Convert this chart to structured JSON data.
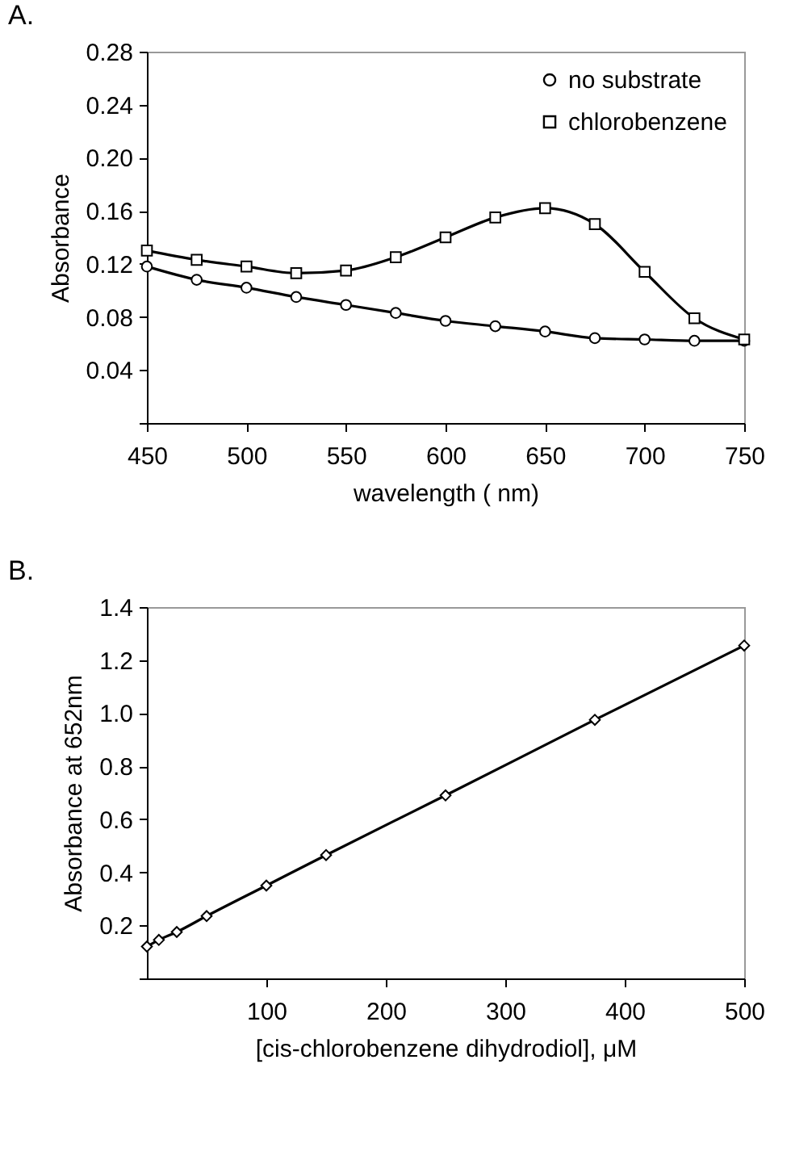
{
  "chart_data": [
    {
      "type": "line",
      "title": "A.",
      "xlabel": "wavelength ( nm)",
      "ylabel": "Absorbance",
      "x": [
        450,
        475,
        500,
        525,
        550,
        575,
        600,
        625,
        650,
        675,
        700,
        725,
        750
      ],
      "series": [
        {
          "name": "no substrate",
          "color": "#000000",
          "marker": "circle",
          "values": [
            0.118,
            0.108,
            0.102,
            0.095,
            0.089,
            0.083,
            0.077,
            0.073,
            0.069,
            0.064,
            0.063,
            0.062,
            0.062
          ]
        },
        {
          "name": "chlorobenzene",
          "color": "#000000",
          "marker": "square",
          "values": [
            0.13,
            0.123,
            0.118,
            0.113,
            0.115,
            0.125,
            0.14,
            0.155,
            0.162,
            0.15,
            0.114,
            0.079,
            0.063
          ]
        }
      ],
      "xlim": [
        450,
        750
      ],
      "xticks": [
        450,
        500,
        550,
        600,
        650,
        700,
        750
      ],
      "ylim": [
        0,
        0.28
      ],
      "yticks": [
        {
          "value": 0,
          "label": null
        },
        0.04,
        0.08,
        0.12,
        0.16,
        {
          "value": 0.2,
          "label": "0.20"
        },
        0.24,
        0.28
      ],
      "legend": "top right",
      "grid": false,
      "line_style": "solid"
    },
    {
      "type": "line",
      "title": "B.",
      "xlabel": "[cis-chlorobenzene dihydrodiol], μM",
      "ylabel": "Absorbance at 652nm",
      "x": [
        0,
        10,
        25,
        50,
        100,
        150,
        250,
        375,
        500
      ],
      "series": [
        {
          "color": "#000000",
          "marker": "diamond",
          "values": [
            0.12,
            0.145,
            0.175,
            0.235,
            0.35,
            0.465,
            0.69,
            0.975,
            1.255
          ]
        }
      ],
      "xlim": [
        0,
        500
      ],
      "xticks": [
        100,
        200,
        300,
        400,
        500
      ],
      "ylim": [
        0,
        1.4
      ],
      "yticks": [
        {
          "value": 0,
          "label": null
        },
        0.2,
        0.4,
        0.6,
        0.8,
        {
          "value": 1,
          "label": "1.0"
        },
        1.2,
        1.4
      ],
      "grid": false,
      "line_style": "solid"
    }
  ]
}
